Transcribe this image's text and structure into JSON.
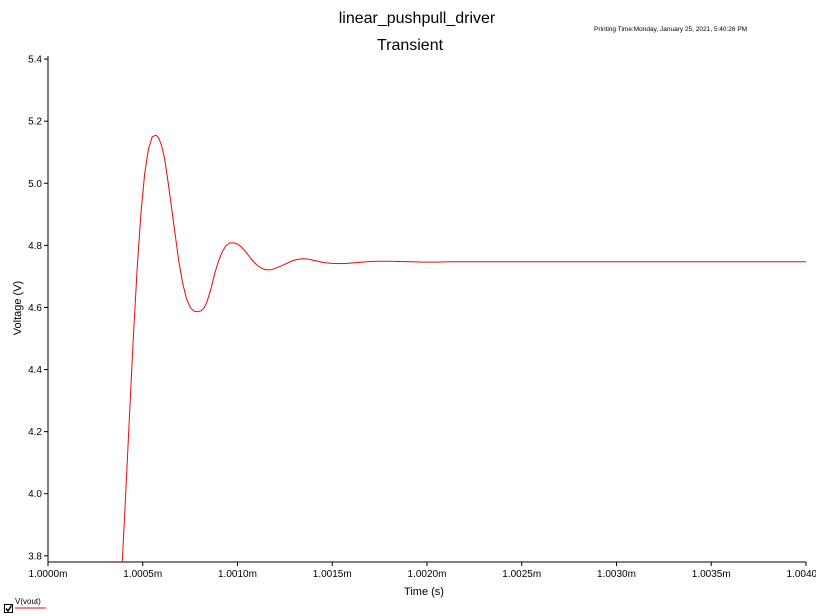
{
  "header": {
    "title": "linear_pushpull_driver",
    "subtitle": "Transient",
    "printing_time": "Printing Time:Monday, January 25, 2021, 5:40:26 PM"
  },
  "legend": {
    "checked": true,
    "label": "V(vout)"
  },
  "chart_data": {
    "type": "line",
    "xlabel": "Time (s)",
    "ylabel": "Voltage (V)",
    "xlim": [
      1.0,
      1.004
    ],
    "ylim": [
      3.78,
      5.41
    ],
    "x_ticks": [
      1.0,
      1.0005,
      1.001,
      1.0015,
      1.002,
      1.0025,
      1.003,
      1.0035,
      1.004
    ],
    "x_tick_labels": [
      "1.0000m",
      "1.0005m",
      "1.0010m",
      "1.0015m",
      "1.0020m",
      "1.0025m",
      "1.0030m",
      "1.0035m",
      "1.0040m"
    ],
    "y_ticks": [
      3.8,
      4.0,
      4.2,
      4.4,
      4.6,
      4.8,
      5.0,
      5.2,
      5.4
    ],
    "y_tick_labels": [
      "3.8",
      "4.0",
      "4.2",
      "4.4",
      "4.6",
      "4.8",
      "5.0",
      "5.2",
      "5.4"
    ],
    "grid": false,
    "series": [
      {
        "name": "V(vout)",
        "color": "#ff0000",
        "x": [
          1.000392,
          1.00041,
          1.00043,
          1.00045,
          1.00047,
          1.00049,
          1.00051,
          1.00053,
          1.00055,
          1.00057,
          1.000585,
          1.0006,
          1.000615,
          1.00063,
          1.00065,
          1.00067,
          1.00069,
          1.00071,
          1.00073,
          1.00075,
          1.00077,
          1.00079,
          1.00081,
          1.000825,
          1.00084,
          1.00086,
          1.00088,
          1.0009,
          1.00092,
          1.00094,
          1.00096,
          1.00098,
          1.001,
          1.00102,
          1.00104,
          1.00106,
          1.00108,
          1.0011,
          1.00112,
          1.00114,
          1.00116,
          1.00118,
          1.0012,
          1.00122,
          1.00125,
          1.00128,
          1.00131,
          1.00134,
          1.00137,
          1.0014,
          1.00143,
          1.00146,
          1.0015,
          1.00154,
          1.00158,
          1.00162,
          1.00166,
          1.0017,
          1.00175,
          1.0018,
          1.00186,
          1.00192,
          1.00198,
          1.00205,
          1.00212,
          1.0022,
          1.0023,
          1.0024,
          1.0026,
          1.0028,
          1.003,
          1.0032,
          1.0034,
          1.0036,
          1.0038,
          1.004
        ],
        "y": [
          3.78,
          4.0,
          4.25,
          4.5,
          4.72,
          4.9,
          5.03,
          5.11,
          5.15,
          5.155,
          5.145,
          5.12,
          5.08,
          5.02,
          4.93,
          4.84,
          4.75,
          4.68,
          4.63,
          4.6,
          4.588,
          4.586,
          4.59,
          4.6,
          4.62,
          4.66,
          4.71,
          4.75,
          4.78,
          4.8,
          4.808,
          4.808,
          4.804,
          4.795,
          4.782,
          4.766,
          4.751,
          4.738,
          4.729,
          4.723,
          4.721,
          4.722,
          4.726,
          4.731,
          4.739,
          4.748,
          4.754,
          4.757,
          4.756,
          4.752,
          4.748,
          4.744,
          4.742,
          4.741,
          4.742,
          4.744,
          4.746,
          4.748,
          4.749,
          4.749,
          4.748,
          4.747,
          4.746,
          4.746,
          4.747,
          4.747,
          4.747,
          4.747,
          4.747,
          4.747,
          4.747,
          4.747,
          4.747,
          4.747,
          4.747,
          4.747
        ]
      }
    ]
  }
}
